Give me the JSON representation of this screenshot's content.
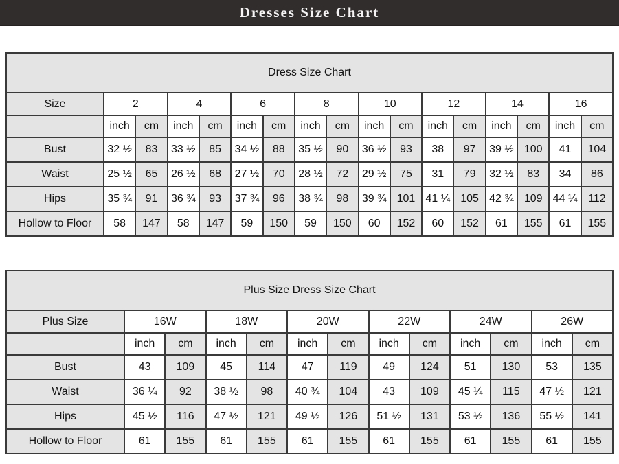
{
  "header": {
    "title": "Dresses Size Chart"
  },
  "colors": {
    "header_bar": "#312d2d",
    "header_text": "#f6f4f4",
    "cell_gray": "#e4e4e4",
    "cell_white": "#ffffff",
    "border": "#3a3a3a",
    "text": "#141414"
  },
  "tables": [
    {
      "title": "Dress Size Chart",
      "corner_label": "Size",
      "units": [
        "inch",
        "cm"
      ],
      "sizes": [
        "2",
        "4",
        "6",
        "8",
        "10",
        "12",
        "14",
        "16"
      ],
      "measurements": [
        {
          "label": "Bust",
          "inch": [
            "32 ½",
            "33 ½",
            "34 ½",
            "35 ½",
            "36 ½",
            "38",
            "39 ½",
            "41"
          ],
          "cm": [
            "83",
            "85",
            "88",
            "90",
            "93",
            "97",
            "100",
            "104"
          ]
        },
        {
          "label": "Waist",
          "inch": [
            "25 ½",
            "26 ½",
            "27 ½",
            "28 ½",
            "29 ½",
            "31",
            "32 ½",
            "34"
          ],
          "cm": [
            "65",
            "68",
            "70",
            "72",
            "75",
            "79",
            "83",
            "86"
          ]
        },
        {
          "label": "Hips",
          "inch": [
            "35 ¾",
            "36 ¾",
            "37 ¾",
            "38 ¾",
            "39 ¾",
            "41 ¼",
            "42 ¾",
            "44 ¼"
          ],
          "cm": [
            "91",
            "93",
            "96",
            "98",
            "101",
            "105",
            "109",
            "112"
          ]
        },
        {
          "label": "Hollow to Floor",
          "inch": [
            "58",
            "58",
            "59",
            "59",
            "60",
            "60",
            "61",
            "61"
          ],
          "cm": [
            "147",
            "147",
            "150",
            "150",
            "152",
            "152",
            "155",
            "155"
          ]
        }
      ]
    },
    {
      "title": "Plus Size Dress Size Chart",
      "corner_label": "Plus Size",
      "units": [
        "inch",
        "cm"
      ],
      "sizes": [
        "16W",
        "18W",
        "20W",
        "22W",
        "24W",
        "26W"
      ],
      "measurements": [
        {
          "label": "Bust",
          "inch": [
            "43",
            "45",
            "47",
            "49",
            "51",
            "53"
          ],
          "cm": [
            "109",
            "114",
            "119",
            "124",
            "130",
            "135"
          ]
        },
        {
          "label": "Waist",
          "inch": [
            "36 ¼",
            "38 ½",
            "40 ¾",
            "43",
            "45 ¼",
            "47 ½"
          ],
          "cm": [
            "92",
            "98",
            "104",
            "109",
            "115",
            "121"
          ]
        },
        {
          "label": "Hips",
          "inch": [
            "45 ½",
            "47 ½",
            "49 ½",
            "51 ½",
            "53 ½",
            "55 ½"
          ],
          "cm": [
            "116",
            "121",
            "126",
            "131",
            "136",
            "141"
          ]
        },
        {
          "label": "Hollow to Floor",
          "inch": [
            "61",
            "61",
            "61",
            "61",
            "61",
            "61"
          ],
          "cm": [
            "155",
            "155",
            "155",
            "155",
            "155",
            "155"
          ]
        }
      ]
    }
  ]
}
